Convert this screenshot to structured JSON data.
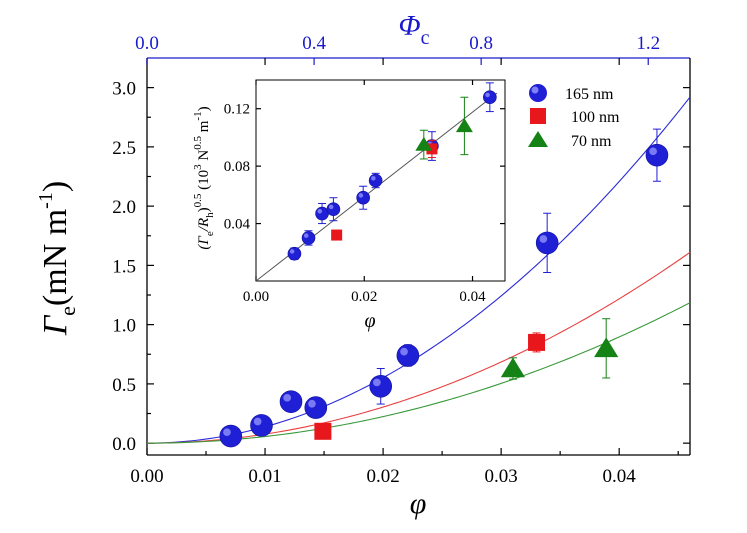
{
  "chart_data": [
    {
      "type": "scatter",
      "id": "main",
      "xlabel": "φ",
      "ylabel_symbol": "Γ",
      "ylabel_sub": "e",
      "ylabel_unit": "(mN m",
      "ylabel_exp": "-1",
      "ylabel_close": ")",
      "top_xlabel": "Φ",
      "top_xlabel_sub": "c",
      "xlim": [
        0,
        0.046
      ],
      "ylim": [
        -0.1,
        3.25
      ],
      "top_xlim": [
        0,
        1.3
      ],
      "x_ticks": [
        0.0,
        0.01,
        0.02,
        0.03,
        0.04
      ],
      "x_tick_labels": [
        "0.00",
        "0.01",
        "0.02",
        "0.03",
        "0.04"
      ],
      "y_ticks": [
        0.0,
        0.5,
        1.0,
        1.5,
        2.0,
        2.5,
        3.0
      ],
      "y_tick_labels": [
        "0.0",
        "0.5",
        "1.0",
        "1.5",
        "2.0",
        "2.5",
        "3.0"
      ],
      "top_ticks": [
        0.0,
        0.4,
        0.8,
        1.2
      ],
      "top_tick_labels": [
        "0.0",
        "0.4",
        "0.8",
        "1.2"
      ],
      "series": [
        {
          "name": "165 nm",
          "marker": "circle",
          "color": "#1f1fd6",
          "x": [
            0.0071,
            0.0097,
            0.0122,
            0.0143,
            0.0198,
            0.0221,
            0.0339,
            0.0432
          ],
          "y": [
            0.06,
            0.15,
            0.35,
            0.3,
            0.48,
            0.74,
            1.69,
            2.43
          ],
          "err": [
            0.05,
            0.06,
            0.08,
            0.07,
            0.15,
            0.09,
            0.25,
            0.22
          ],
          "fit_color": "#2b2bd9",
          "fit_coef": 1380
        },
        {
          "name": "100 nm",
          "marker": "square",
          "color": "#e8171c",
          "x": [
            0.0149,
            0.033
          ],
          "y": [
            0.1,
            0.85
          ],
          "err": [
            0.0,
            0.08
          ],
          "fit_color": "#e84040",
          "fit_coef": 761
        },
        {
          "name": "70 nm",
          "marker": "triangle",
          "color": "#148214",
          "x": [
            0.031,
            0.0389
          ],
          "y": [
            0.63,
            0.8
          ],
          "err": [
            0.09,
            0.25
          ],
          "fit_color": "#3a9a3a",
          "fit_coef": 560
        }
      ]
    },
    {
      "type": "scatter",
      "id": "inset",
      "xlabel": "φ",
      "ylabel_a": "(Γ",
      "ylabel_a_sub": "e",
      "ylabel_b": "/R",
      "ylabel_b_sub": "h",
      "ylabel_c": ")",
      "ylabel_exp1": "0.5",
      "ylabel_d": " (10",
      "ylabel_exp2": "3",
      "ylabel_e": " N",
      "ylabel_exp3": "0.5",
      "ylabel_f": " m",
      "ylabel_exp4": "-1",
      "ylabel_g": ")",
      "xlim": [
        0,
        0.046
      ],
      "ylim": [
        0,
        0.14
      ],
      "x_ticks": [
        0.0,
        0.02,
        0.04
      ],
      "x_tick_labels": [
        "0.00",
        "0.02",
        "0.04"
      ],
      "y_ticks": [
        0.04,
        0.08,
        0.12
      ],
      "y_tick_labels": [
        "0.04",
        "0.08",
        "0.12"
      ],
      "fit_slope": 2.94,
      "series": [
        {
          "name": "165 nm",
          "marker": "circle",
          "color": "#1f1fd6",
          "x": [
            0.0071,
            0.0097,
            0.0122,
            0.0143,
            0.0198,
            0.0221,
            0.0325,
            0.0432
          ],
          "y": [
            0.019,
            0.03,
            0.047,
            0.05,
            0.058,
            0.07,
            0.094,
            0.128
          ],
          "err": [
            0.004,
            0.005,
            0.007,
            0.008,
            0.008,
            0.005,
            0.01,
            0.01
          ]
        },
        {
          "name": "100 nm",
          "marker": "square",
          "color": "#e8171c",
          "x": [
            0.0149,
            0.0325
          ],
          "y": [
            0.032,
            0.092
          ],
          "err": [
            0.0,
            0.006
          ]
        },
        {
          "name": "70 nm",
          "marker": "triangle",
          "color": "#148214",
          "x": [
            0.031,
            0.0385
          ],
          "y": [
            0.095,
            0.108
          ],
          "err": [
            0.01,
            0.02
          ]
        }
      ]
    }
  ],
  "legend": {
    "placement": "top-right",
    "entries": [
      "165 nm",
      "100 nm",
      "70 nm"
    ]
  },
  "colors": {
    "top_axis": "#1a1acc",
    "axis": "#000000"
  }
}
